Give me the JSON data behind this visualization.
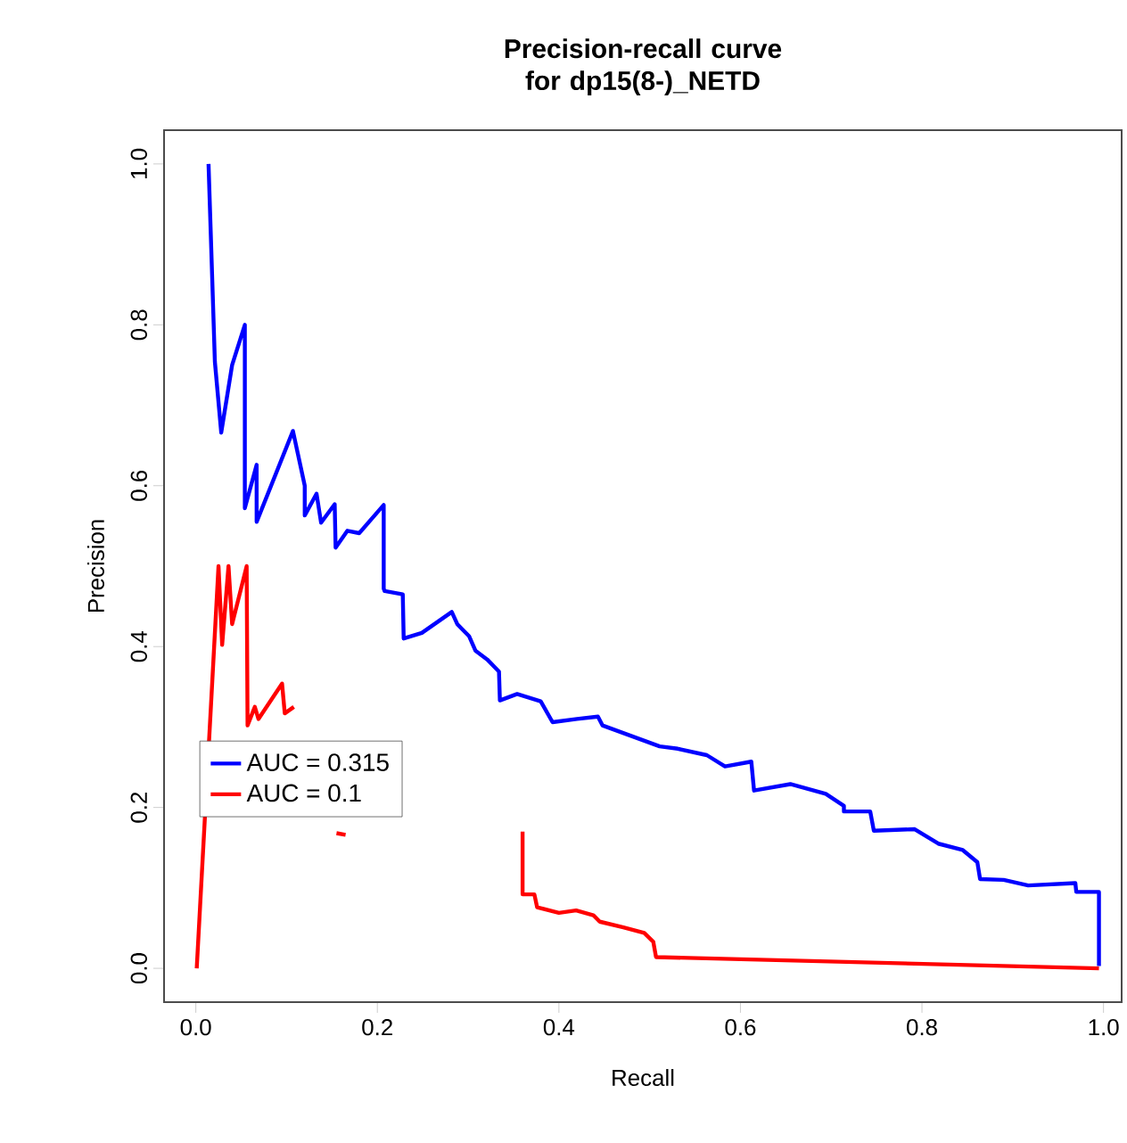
{
  "chart_data": {
    "type": "line",
    "title": "Precision-recall curve for dp15(8-)_NETD",
    "xlabel": "Recall",
    "ylabel": "Precision",
    "xlim": [
      -0.035,
      1.02
    ],
    "ylim": [
      -0.042,
      1.042
    ],
    "xticks": [
      {
        "value": 0,
        "label": "0.0"
      },
      {
        "value": 0.2,
        "label": "0.2"
      },
      {
        "value": 0.4,
        "label": "0.4"
      },
      {
        "value": 0.6,
        "label": "0.6"
      },
      {
        "value": 0.8,
        "label": "0.8"
      },
      {
        "value": 1,
        "label": "1.0"
      }
    ],
    "yticks": [
      {
        "value": 0,
        "label": "0.0"
      },
      {
        "value": 0.2,
        "label": "0.2"
      },
      {
        "value": 0.4,
        "label": "0.4"
      },
      {
        "value": 0.6,
        "label": "0.6"
      },
      {
        "value": 0.8,
        "label": "0.8"
      },
      {
        "value": 1,
        "label": "1.0"
      }
    ],
    "legend": "left",
    "grid": false,
    "marker": "none",
    "line_style": "solid",
    "series": [
      {
        "name": "AUC =  0.315",
        "color": "#0000ff",
        "x": [
          0.014,
          0.021,
          0.028,
          0.04,
          0.054,
          0.054,
          0.067,
          0.067,
          0.107,
          0.12,
          0.12,
          0.133,
          0.138,
          0.153,
          0.154,
          0.167,
          0.18,
          0.207,
          0.207,
          0.208,
          0.228,
          0.229,
          0.249,
          0.282,
          0.288,
          0.301,
          0.308,
          0.321,
          0.334,
          0.335,
          0.354,
          0.38,
          0.393,
          0.42,
          0.443,
          0.448,
          0.511,
          0.531,
          0.563,
          0.583,
          0.612,
          0.615,
          0.655,
          0.694,
          0.714,
          0.714,
          0.743,
          0.747,
          0.792,
          0.818,
          0.845,
          0.861,
          0.864,
          0.89,
          0.917,
          0.969,
          0.97,
          0.995,
          0.995
        ],
        "values": [
          1.0,
          0.754,
          0.666,
          0.75,
          0.8,
          0.572,
          0.626,
          0.555,
          0.668,
          0.6,
          0.563,
          0.59,
          0.554,
          0.577,
          0.523,
          0.544,
          0.541,
          0.576,
          0.472,
          0.469,
          0.465,
          0.41,
          0.417,
          0.443,
          0.428,
          0.413,
          0.395,
          0.384,
          0.369,
          0.333,
          0.341,
          0.332,
          0.306,
          0.31,
          0.313,
          0.302,
          0.276,
          0.273,
          0.265,
          0.251,
          0.257,
          0.221,
          0.229,
          0.217,
          0.202,
          0.195,
          0.195,
          0.171,
          0.173,
          0.155,
          0.147,
          0.132,
          0.111,
          0.11,
          0.103,
          0.106,
          0.095,
          0.095,
          0.003
        ]
      },
      {
        "name": "AUC =  0.1",
        "color": "#ff0000",
        "x": [
          0.001,
          0.025,
          0.029,
          0.036,
          0.04,
          0.056,
          0.057,
          0.065,
          0.069,
          0.095,
          0.098,
          0.108,
          0.13,
          0.155,
          0.165,
          0.2,
          0.36,
          0.36,
          0.373,
          0.376,
          0.4,
          0.419,
          0.438,
          0.445,
          0.471,
          0.494,
          0.504,
          0.507,
          0.995
        ],
        "values": [
          0.0,
          0.5,
          0.402,
          0.5,
          0.428,
          0.5,
          0.302,
          0.325,
          0.31,
          0.354,
          0.317,
          0.325,
          null,
          0.168,
          0.166,
          null,
          0.17,
          0.092,
          0.092,
          0.076,
          0.069,
          0.072,
          0.066,
          0.058,
          0.051,
          0.044,
          0.033,
          0.014,
          0.0
        ]
      }
    ]
  }
}
